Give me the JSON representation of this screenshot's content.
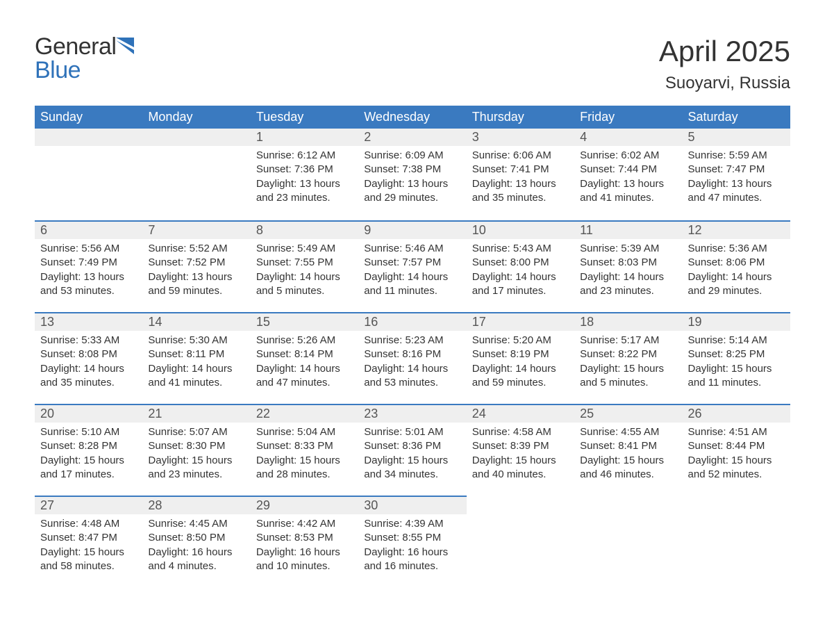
{
  "logo": {
    "line1": "General",
    "line2": "Blue",
    "line2_color": "#2f72b9",
    "icon_color": "#2f72b9"
  },
  "title": "April 2025",
  "subtitle": "Suoyarvi, Russia",
  "colors": {
    "header_bg": "#3a7ac0",
    "header_text": "#ffffff",
    "daynum_bg": "#efefef",
    "daynum_border": "#3a7ac0",
    "body_text": "#333333",
    "page_bg": "#ffffff"
  },
  "fonts": {
    "title_size_pt": 32,
    "subtitle_size_pt": 18,
    "dayheader_size_pt": 14,
    "daynum_size_pt": 14,
    "body_size_pt": 11
  },
  "day_headers": [
    "Sunday",
    "Monday",
    "Tuesday",
    "Wednesday",
    "Thursday",
    "Friday",
    "Saturday"
  ],
  "weeks": [
    [
      null,
      null,
      {
        "n": "1",
        "sunrise": "6:12 AM",
        "sunset": "7:36 PM",
        "daylight": "13 hours and 23 minutes."
      },
      {
        "n": "2",
        "sunrise": "6:09 AM",
        "sunset": "7:38 PM",
        "daylight": "13 hours and 29 minutes."
      },
      {
        "n": "3",
        "sunrise": "6:06 AM",
        "sunset": "7:41 PM",
        "daylight": "13 hours and 35 minutes."
      },
      {
        "n": "4",
        "sunrise": "6:02 AM",
        "sunset": "7:44 PM",
        "daylight": "13 hours and 41 minutes."
      },
      {
        "n": "5",
        "sunrise": "5:59 AM",
        "sunset": "7:47 PM",
        "daylight": "13 hours and 47 minutes."
      }
    ],
    [
      {
        "n": "6",
        "sunrise": "5:56 AM",
        "sunset": "7:49 PM",
        "daylight": "13 hours and 53 minutes."
      },
      {
        "n": "7",
        "sunrise": "5:52 AM",
        "sunset": "7:52 PM",
        "daylight": "13 hours and 59 minutes."
      },
      {
        "n": "8",
        "sunrise": "5:49 AM",
        "sunset": "7:55 PM",
        "daylight": "14 hours and 5 minutes."
      },
      {
        "n": "9",
        "sunrise": "5:46 AM",
        "sunset": "7:57 PM",
        "daylight": "14 hours and 11 minutes."
      },
      {
        "n": "10",
        "sunrise": "5:43 AM",
        "sunset": "8:00 PM",
        "daylight": "14 hours and 17 minutes."
      },
      {
        "n": "11",
        "sunrise": "5:39 AM",
        "sunset": "8:03 PM",
        "daylight": "14 hours and 23 minutes."
      },
      {
        "n": "12",
        "sunrise": "5:36 AM",
        "sunset": "8:06 PM",
        "daylight": "14 hours and 29 minutes."
      }
    ],
    [
      {
        "n": "13",
        "sunrise": "5:33 AM",
        "sunset": "8:08 PM",
        "daylight": "14 hours and 35 minutes."
      },
      {
        "n": "14",
        "sunrise": "5:30 AM",
        "sunset": "8:11 PM",
        "daylight": "14 hours and 41 minutes."
      },
      {
        "n": "15",
        "sunrise": "5:26 AM",
        "sunset": "8:14 PM",
        "daylight": "14 hours and 47 minutes."
      },
      {
        "n": "16",
        "sunrise": "5:23 AM",
        "sunset": "8:16 PM",
        "daylight": "14 hours and 53 minutes."
      },
      {
        "n": "17",
        "sunrise": "5:20 AM",
        "sunset": "8:19 PM",
        "daylight": "14 hours and 59 minutes."
      },
      {
        "n": "18",
        "sunrise": "5:17 AM",
        "sunset": "8:22 PM",
        "daylight": "15 hours and 5 minutes."
      },
      {
        "n": "19",
        "sunrise": "5:14 AM",
        "sunset": "8:25 PM",
        "daylight": "15 hours and 11 minutes."
      }
    ],
    [
      {
        "n": "20",
        "sunrise": "5:10 AM",
        "sunset": "8:28 PM",
        "daylight": "15 hours and 17 minutes."
      },
      {
        "n": "21",
        "sunrise": "5:07 AM",
        "sunset": "8:30 PM",
        "daylight": "15 hours and 23 minutes."
      },
      {
        "n": "22",
        "sunrise": "5:04 AM",
        "sunset": "8:33 PM",
        "daylight": "15 hours and 28 minutes."
      },
      {
        "n": "23",
        "sunrise": "5:01 AM",
        "sunset": "8:36 PM",
        "daylight": "15 hours and 34 minutes."
      },
      {
        "n": "24",
        "sunrise": "4:58 AM",
        "sunset": "8:39 PM",
        "daylight": "15 hours and 40 minutes."
      },
      {
        "n": "25",
        "sunrise": "4:55 AM",
        "sunset": "8:41 PM",
        "daylight": "15 hours and 46 minutes."
      },
      {
        "n": "26",
        "sunrise": "4:51 AM",
        "sunset": "8:44 PM",
        "daylight": "15 hours and 52 minutes."
      }
    ],
    [
      {
        "n": "27",
        "sunrise": "4:48 AM",
        "sunset": "8:47 PM",
        "daylight": "15 hours and 58 minutes."
      },
      {
        "n": "28",
        "sunrise": "4:45 AM",
        "sunset": "8:50 PM",
        "daylight": "16 hours and 4 minutes."
      },
      {
        "n": "29",
        "sunrise": "4:42 AM",
        "sunset": "8:53 PM",
        "daylight": "16 hours and 10 minutes."
      },
      {
        "n": "30",
        "sunrise": "4:39 AM",
        "sunset": "8:55 PM",
        "daylight": "16 hours and 16 minutes."
      },
      null,
      null,
      null
    ]
  ],
  "labels": {
    "sunrise": "Sunrise:",
    "sunset": "Sunset:",
    "daylight": "Daylight:"
  }
}
